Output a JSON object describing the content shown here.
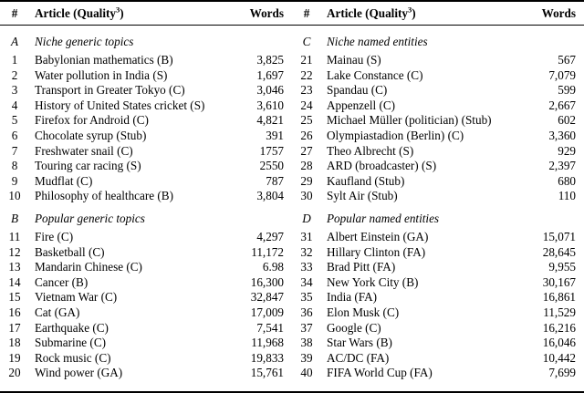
{
  "colors": {
    "text": "#000000",
    "background": "#ffffff",
    "rule": "#000000"
  },
  "table": {
    "header": {
      "num": "#",
      "article_prefix": "Article (Quality",
      "quality_superscript": "3",
      "article_suffix": ")",
      "words": "Words"
    },
    "columns": [
      {
        "sections": [
          {
            "letter": "A",
            "title": "Niche generic topics",
            "rows": [
              {
                "num": "1",
                "article": "Babylonian mathematics (B)",
                "words": "3,825"
              },
              {
                "num": "2",
                "article": "Water pollution in India (S)",
                "words": "1,697"
              },
              {
                "num": "3",
                "article": "Transport in Greater Tokyo (C)",
                "words": "3,046"
              },
              {
                "num": "4",
                "article": "History of United States cricket (S)",
                "words": "3,610"
              },
              {
                "num": "5",
                "article": "Firefox for Android (C)",
                "words": "4,821"
              },
              {
                "num": "6",
                "article": "Chocolate syrup (Stub)",
                "words": "391"
              },
              {
                "num": "7",
                "article": "Freshwater snail (C)",
                "words": "1757"
              },
              {
                "num": "8",
                "article": "Touring car racing (S)",
                "words": "2550"
              },
              {
                "num": "9",
                "article": "Mudflat (C)",
                "words": "787"
              },
              {
                "num": "10",
                "article": "Philosophy of healthcare (B)",
                "words": "3,804"
              }
            ]
          },
          {
            "letter": "B",
            "title": "Popular generic topics",
            "rows": [
              {
                "num": "11",
                "article": "Fire (C)",
                "words": "4,297"
              },
              {
                "num": "12",
                "article": "Basketball (C)",
                "words": "11,172"
              },
              {
                "num": "13",
                "article": "Mandarin Chinese (C)",
                "words": "6.98"
              },
              {
                "num": "14",
                "article": "Cancer (B)",
                "words": "16,300"
              },
              {
                "num": "15",
                "article": "Vietnam War (C)",
                "words": "32,847"
              },
              {
                "num": "16",
                "article": "Cat (GA)",
                "words": "17,009"
              },
              {
                "num": "17",
                "article": "Earthquake (C)",
                "words": "7,541"
              },
              {
                "num": "18",
                "article": "Submarine (C)",
                "words": "11,968"
              },
              {
                "num": "19",
                "article": "Rock music (C)",
                "words": "19,833"
              },
              {
                "num": "20",
                "article": "Wind power (GA)",
                "words": "15,761"
              }
            ]
          }
        ]
      },
      {
        "sections": [
          {
            "letter": "C",
            "title": "Niche named entities",
            "rows": [
              {
                "num": "21",
                "article": "Mainau (S)",
                "words": "567"
              },
              {
                "num": "22",
                "article": "Lake Constance (C)",
                "words": "7,079"
              },
              {
                "num": "23",
                "article": "Spandau (C)",
                "words": "599"
              },
              {
                "num": "24",
                "article": "Appenzell (C)",
                "words": "2,667"
              },
              {
                "num": "25",
                "article": "Michael Müller (politician) (Stub)",
                "words": "602"
              },
              {
                "num": "26",
                "article": "Olympiastadion (Berlin) (C)",
                "words": "3,360"
              },
              {
                "num": "27",
                "article": "Theo Albrecht (S)",
                "words": "929"
              },
              {
                "num": "28",
                "article": "ARD (broadcaster) (S)",
                "words": "2,397"
              },
              {
                "num": "29",
                "article": "Kaufland (Stub)",
                "words": "680"
              },
              {
                "num": "30",
                "article": "Sylt Air (Stub)",
                "words": "110"
              }
            ]
          },
          {
            "letter": "D",
            "title": "Popular named entities",
            "rows": [
              {
                "num": "31",
                "article": "Albert Einstein (GA)",
                "words": "15,071"
              },
              {
                "num": "32",
                "article": "Hillary Clinton (FA)",
                "words": "28,645"
              },
              {
                "num": "33",
                "article": "Brad Pitt (FA)",
                "words": "9,955"
              },
              {
                "num": "34",
                "article": "New York City (B)",
                "words": "30,167"
              },
              {
                "num": "35",
                "article": "India (FA)",
                "words": "16,861"
              },
              {
                "num": "36",
                "article": "Elon Musk (C)",
                "words": "11,529"
              },
              {
                "num": "37",
                "article": "Google (C)",
                "words": "16,216"
              },
              {
                "num": "38",
                "article": "Star Wars (B)",
                "words": "16,046"
              },
              {
                "num": "39",
                "article": "AC/DC (FA)",
                "words": "10,442"
              },
              {
                "num": "40",
                "article": "FIFA World Cup (FA)",
                "words": "7,699"
              }
            ]
          }
        ]
      }
    ]
  }
}
